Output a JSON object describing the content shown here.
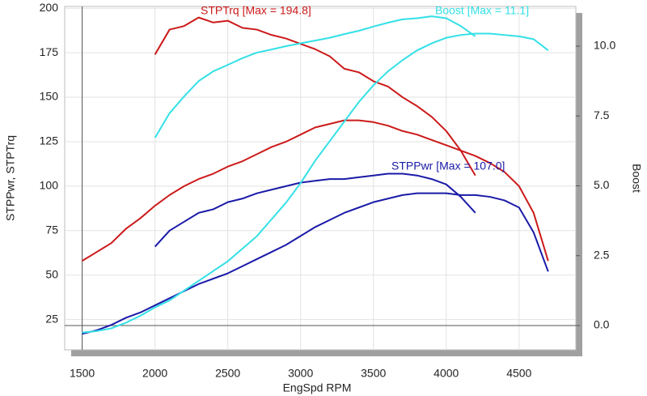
{
  "chart_data": {
    "type": "line",
    "x_label": "EngSpd  RPM",
    "y_label": "STPPwr, STPTrq",
    "y2_label": "Boost",
    "x": [
      1500,
      1600,
      1700,
      1800,
      1900,
      2000,
      2100,
      2200,
      2300,
      2400,
      2500,
      2600,
      2700,
      2800,
      2900,
      3000,
      3100,
      3200,
      3300,
      3400,
      3500,
      3600,
      3700,
      3800,
      3900,
      4000,
      4100,
      4200,
      4300,
      4400,
      4500,
      4600,
      4700
    ],
    "xlim": [
      1380,
      4890
    ],
    "xticks": [
      1500,
      2000,
      2500,
      3000,
      3500,
      4000,
      4500
    ],
    "ylim": [
      8,
      201
    ],
    "yticks": [
      25,
      50,
      75,
      100,
      125,
      150,
      175,
      200
    ],
    "y2lim": [
      -0.87,
      11.42
    ],
    "y2ticks": [
      {
        "value": 0,
        "label": "0.0"
      },
      {
        "value": 2.5,
        "label": "2.5"
      },
      {
        "value": 5,
        "label": "5.0"
      },
      {
        "value": 7.5,
        "label": "7.5"
      },
      {
        "value": 10,
        "label": "10.0"
      }
    ],
    "grid": true,
    "series": [
      {
        "name": "STPTrq [Max = 194.8]",
        "color": "#cc1a1a",
        "values": [
          null,
          null,
          null,
          null,
          null,
          174,
          188,
          190,
          194.8,
          192,
          193,
          189,
          188,
          185,
          183,
          180,
          177,
          173,
          166,
          164,
          159,
          156,
          150,
          145,
          139,
          131,
          120,
          106,
          null,
          null,
          null,
          null,
          null
        ]
      },
      {
        "color": "#cc1a1a",
        "values": [
          58,
          63,
          68,
          76,
          82,
          89,
          95,
          100,
          104,
          107,
          111,
          114,
          118,
          122,
          125,
          129,
          133,
          135,
          137,
          137,
          136,
          134,
          131,
          129,
          126,
          123,
          120,
          117,
          113,
          108,
          100,
          85,
          58
        ]
      },
      {
        "name": "STPPwr [Max = 107.0]",
        "color": "#1a1aa8",
        "values": [
          null,
          null,
          null,
          null,
          null,
          66,
          75,
          80,
          85,
          87,
          91,
          93,
          96,
          98,
          100,
          102,
          103,
          104,
          104,
          105,
          106,
          107,
          107,
          106,
          104,
          101,
          94,
          85,
          null,
          null,
          null,
          null,
          null
        ]
      },
      {
        "color": "#1a1aa8",
        "values": [
          17,
          19,
          22,
          26,
          29,
          33,
          37,
          41,
          45,
          48,
          51,
          55,
          59,
          63,
          67,
          72,
          77,
          81,
          85,
          88,
          91,
          93,
          95,
          96,
          96,
          96,
          95,
          95,
          94,
          92,
          88,
          74,
          52
        ]
      },
      {
        "name": "Boost  [Max = 11.1]",
        "color": "#33e0e6",
        "axis": "y2",
        "values": [
          null,
          null,
          null,
          null,
          null,
          6.72,
          7.6,
          8.2,
          8.75,
          9.1,
          9.33,
          9.57,
          9.77,
          9.88,
          10.0,
          10.1,
          10.2,
          10.3,
          10.43,
          10.55,
          10.7,
          10.84,
          10.96,
          11.0,
          11.07,
          11.0,
          10.72,
          10.35,
          null,
          null,
          null,
          null,
          null
        ]
      },
      {
        "color": "#33e0e6",
        "axis": "y2",
        "values": [
          -0.25,
          -0.2,
          -0.1,
          0.1,
          0.35,
          0.65,
          0.9,
          1.25,
          1.6,
          1.95,
          2.3,
          2.75,
          3.2,
          3.8,
          4.4,
          5.1,
          5.9,
          6.6,
          7.3,
          8.0,
          8.6,
          9.1,
          9.5,
          9.85,
          10.1,
          10.3,
          10.4,
          10.45,
          10.45,
          10.4,
          10.35,
          10.25,
          9.85
        ]
      }
    ]
  }
}
